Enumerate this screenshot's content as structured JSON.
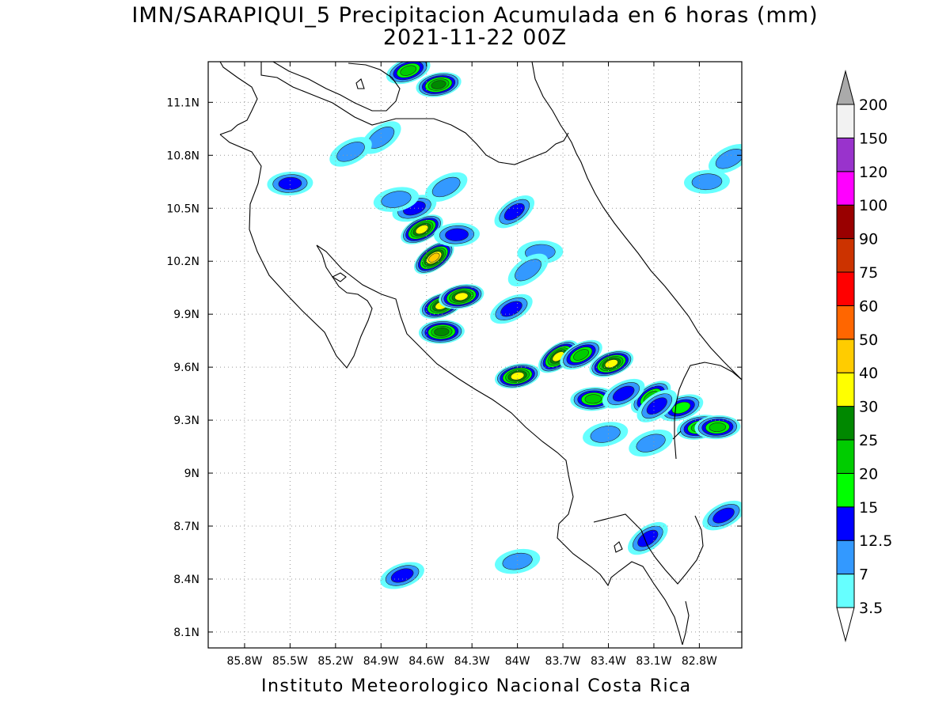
{
  "title": {
    "line1": "IMN/SARAPIQUI_5 Precipitacion Acumulada en 6 horas (mm)",
    "line2": "2021-11-22 00Z"
  },
  "footer": "Instituto Meteorologico Nacional Costa Rica",
  "map": {
    "lon_range": [
      -86.04,
      -82.52
    ],
    "lat_range": [
      8.01,
      11.33
    ],
    "x_ticks": [
      {
        "value": -85.8,
        "label": "85.8W"
      },
      {
        "value": -85.5,
        "label": "85.5W"
      },
      {
        "value": -85.2,
        "label": "85.2W"
      },
      {
        "value": -84.9,
        "label": "84.9W"
      },
      {
        "value": -84.6,
        "label": "84.6W"
      },
      {
        "value": -84.3,
        "label": "84.3W"
      },
      {
        "value": -84.0,
        "label": "84W"
      },
      {
        "value": -83.7,
        "label": "83.7W"
      },
      {
        "value": -83.4,
        "label": "83.4W"
      },
      {
        "value": -83.1,
        "label": "83.1W"
      },
      {
        "value": -82.8,
        "label": "82.8W"
      }
    ],
    "y_ticks": [
      {
        "value": 11.1,
        "label": "11.1N"
      },
      {
        "value": 10.8,
        "label": "10.8N"
      },
      {
        "value": 10.5,
        "label": "10.5N"
      },
      {
        "value": 10.2,
        "label": "10.2N"
      },
      {
        "value": 9.9,
        "label": "9.9N"
      },
      {
        "value": 9.6,
        "label": "9.6N"
      },
      {
        "value": 9.3,
        "label": "9.3N"
      },
      {
        "value": 9.0,
        "label": "9N"
      },
      {
        "value": 8.7,
        "label": "8.7N"
      },
      {
        "value": 8.4,
        "label": "8.4N"
      },
      {
        "value": 8.1,
        "label": "8.1N"
      }
    ]
  },
  "legend": {
    "levels": [
      {
        "label": "3.5",
        "color": "#66ffff"
      },
      {
        "label": "7",
        "color": "#3399ff"
      },
      {
        "label": "12.5",
        "color": "#0000ff"
      },
      {
        "label": "15",
        "color": "#00ff00"
      },
      {
        "label": "20",
        "color": "#00cc00"
      },
      {
        "label": "25",
        "color": "#008800"
      },
      {
        "label": "30",
        "color": "#ffff00"
      },
      {
        "label": "40",
        "color": "#ffcc00"
      },
      {
        "label": "50",
        "color": "#ff6600"
      },
      {
        "label": "60",
        "color": "#ff0000"
      },
      {
        "label": "75",
        "color": "#cc3300"
      },
      {
        "label": "90",
        "color": "#990000"
      },
      {
        "label": "100",
        "color": "#ff00ff"
      },
      {
        "label": "120",
        "color": "#9933cc"
      },
      {
        "label": "150",
        "color": "#f2f2f2"
      },
      {
        "label": "200",
        "color": "#aaaaaa"
      }
    ]
  },
  "precip_cells": [
    {
      "lon": -84.55,
      "lat": 10.22,
      "value": 40
    },
    {
      "lon": -84.63,
      "lat": 10.38,
      "value": 30
    },
    {
      "lon": -84.5,
      "lat": 9.95,
      "value": 30
    },
    {
      "lon": -84.37,
      "lat": 10.0,
      "value": 30
    },
    {
      "lon": -84.5,
      "lat": 9.8,
      "value": 25
    },
    {
      "lon": -83.73,
      "lat": 9.66,
      "value": 30
    },
    {
      "lon": -83.58,
      "lat": 9.67,
      "value": 20
    },
    {
      "lon": -83.38,
      "lat": 9.62,
      "value": 30
    },
    {
      "lon": -84.0,
      "lat": 9.55,
      "value": 30
    },
    {
      "lon": -83.5,
      "lat": 9.42,
      "value": 20
    },
    {
      "lon": -83.12,
      "lat": 9.43,
      "value": 20
    },
    {
      "lon": -83.3,
      "lat": 9.45,
      "value": 12.5
    },
    {
      "lon": -82.92,
      "lat": 9.37,
      "value": 15
    },
    {
      "lon": -82.8,
      "lat": 9.26,
      "value": 20
    },
    {
      "lon": -82.68,
      "lat": 9.26,
      "value": 20
    },
    {
      "lon": -83.08,
      "lat": 9.38,
      "value": 12.5
    },
    {
      "lon": -84.47,
      "lat": 10.62,
      "value": 7
    },
    {
      "lon": -84.68,
      "lat": 10.5,
      "value": 12.5
    },
    {
      "lon": -84.8,
      "lat": 10.55,
      "value": 7
    },
    {
      "lon": -84.4,
      "lat": 10.35,
      "value": 12.5
    },
    {
      "lon": -84.9,
      "lat": 10.9,
      "value": 7
    },
    {
      "lon": -85.1,
      "lat": 10.82,
      "value": 7
    },
    {
      "lon": -84.72,
      "lat": 11.28,
      "value": 20
    },
    {
      "lon": -84.52,
      "lat": 11.2,
      "value": 25
    },
    {
      "lon": -85.5,
      "lat": 10.64,
      "value": 12.5
    },
    {
      "lon": -84.02,
      "lat": 10.48,
      "value": 12.5
    },
    {
      "lon": -84.04,
      "lat": 9.93,
      "value": 12.5
    },
    {
      "lon": -84.76,
      "lat": 8.42,
      "value": 12.5
    },
    {
      "lon": -84.0,
      "lat": 8.5,
      "value": 7
    },
    {
      "lon": -82.75,
      "lat": 10.65,
      "value": 7
    },
    {
      "lon": -83.14,
      "lat": 8.63,
      "value": 12.5
    },
    {
      "lon": -82.64,
      "lat": 8.76,
      "value": 12.5
    },
    {
      "lon": -83.12,
      "lat": 9.17,
      "value": 7
    },
    {
      "lon": -83.42,
      "lat": 9.22,
      "value": 7
    },
    {
      "lon": -83.85,
      "lat": 10.25,
      "value": 7
    },
    {
      "lon": -83.93,
      "lat": 10.15,
      "value": 7
    },
    {
      "lon": -82.6,
      "lat": 10.78,
      "value": 7
    }
  ]
}
